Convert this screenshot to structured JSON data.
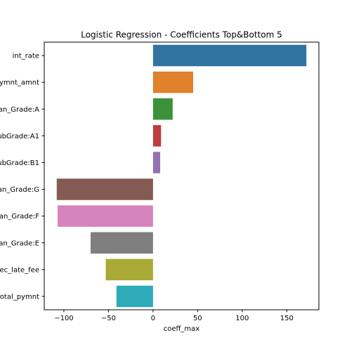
{
  "chart_data": {
    "type": "bar",
    "orientation": "horizontal",
    "title": "Logistic Regression - Coefficients Top&Bottom 5",
    "xlabel": "coeff_max",
    "ylabel": "",
    "categories": [
      "int_rate",
      "pymnt_amnt",
      "an_Grade:A",
      "ubGrade:A1",
      "ubGrade:B1",
      "an_Grade:G",
      "an_Grade:F",
      "an_Grade:E",
      "ec_late_fee",
      "otal_pymnt"
    ],
    "values": [
      172,
      45,
      22,
      9,
      8,
      -108,
      -107,
      -70,
      -53,
      -41
    ],
    "colors": [
      "#3274a1",
      "#e1812c",
      "#3a923a",
      "#c03d3e",
      "#9372b2",
      "#845b53",
      "#d684bd",
      "#7f7f7f",
      "#a9aa35",
      "#2eabb8"
    ],
    "xlim": [
      -122,
      186
    ],
    "xticks": [
      -100,
      -50,
      0,
      50,
      100,
      150
    ],
    "xtick_labels": [
      "−100",
      "−50",
      "0",
      "50",
      "100",
      "150"
    ],
    "grid": false
  }
}
